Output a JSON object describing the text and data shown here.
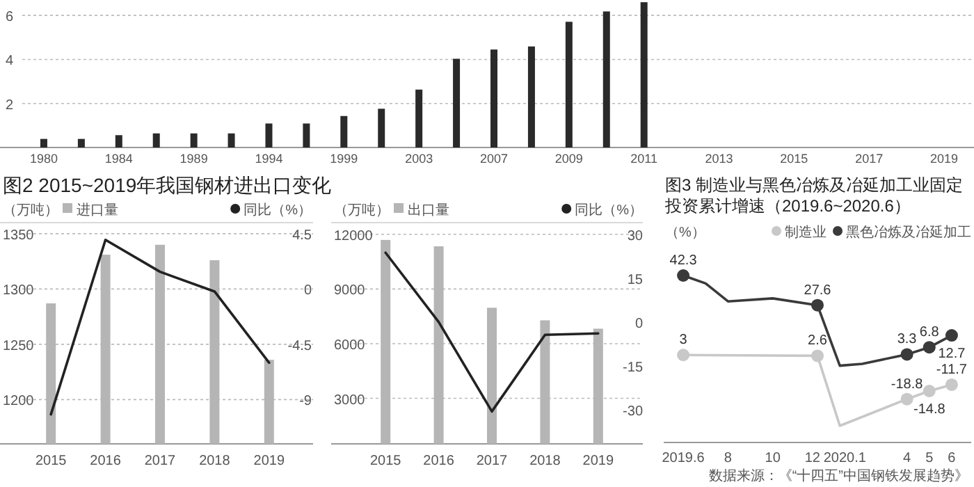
{
  "chart_data": [
    {
      "type": "bar",
      "categories": [
        "1980",
        null,
        "1984",
        null,
        "1989",
        null,
        "1994",
        null,
        "1999",
        null,
        "2003",
        null,
        "2007",
        null,
        "2009",
        null,
        "2011",
        null,
        "2013",
        null,
        "2015",
        null,
        "2017",
        null,
        "2019"
      ],
      "values": [
        0.39,
        0.39,
        0.56,
        0.64,
        0.64,
        0.64,
        1.09,
        1.09,
        1.43,
        1.76,
        2.63,
        4.03,
        4.45,
        4.59,
        5.71,
        6.18,
        6.6,
        null,
        null,
        null,
        null,
        null,
        null,
        null,
        null
      ],
      "color": "#2a2a2a",
      "ylim": [
        0,
        6.7
      ],
      "yticks": [
        2,
        4,
        6
      ],
      "grid": "y"
    },
    {
      "type": "bar",
      "title": "图2 2015~2019年我国钢材进出口变化",
      "ylabel": "（万吨）",
      "y2label": "（%）",
      "categories": [
        "2015",
        "2016",
        "2017",
        "2018",
        "2019"
      ],
      "series": [
        {
          "name": "进口量",
          "color": "#b5b5b5",
          "values": [
            1287,
            1331,
            1340,
            1326,
            1236
          ]
        },
        {
          "name": "同比",
          "type": "line",
          "axis": "y2",
          "color": "#222222",
          "values": [
            -10.2,
            4.0,
            1.4,
            -0.2,
            -6.0
          ]
        }
      ],
      "ylim": [
        1160,
        1360
      ],
      "yticks": [
        1200,
        1250,
        1300,
        1350
      ],
      "y2lim": [
        -12.6,
        5.4
      ],
      "y2ticks": [
        -9,
        -4.5,
        0,
        4.5
      ],
      "grid": "y",
      "legend": "top"
    },
    {
      "type": "bar",
      "ylabel": "（万吨）",
      "y2label": "（%）",
      "categories": [
        "2015",
        "2016",
        "2017",
        "2018",
        "2019"
      ],
      "series": [
        {
          "name": "出口量",
          "color": "#b5b5b5",
          "values": [
            11690,
            11340,
            7970,
            7280,
            6820
          ]
        },
        {
          "name": "同比",
          "type": "line",
          "axis": "y2",
          "color": "#222222",
          "values": [
            23.7,
            0,
            -30.6,
            -4.4,
            -3.9
          ]
        }
      ],
      "ylim": [
        500,
        12640
      ],
      "yticks": [
        3000,
        6000,
        9000,
        12000
      ],
      "y2lim": [
        -41.7,
        34
      ],
      "y2ticks": [
        -30,
        -15,
        0,
        15,
        30
      ],
      "grid": "y",
      "legend": "top"
    },
    {
      "type": "line",
      "title": "图3 制造业与黑色冶炼及冶延加工业固定投资累计增速（2019.6~2020.6）",
      "ylabel": "（%）",
      "categories": [
        "2019.6",
        null,
        "8",
        null,
        "10",
        null,
        "12",
        "2020.1",
        null,
        null,
        "4",
        "5",
        "6"
      ],
      "series": [
        {
          "name": "制造业",
          "color": "#c8c8c8",
          "values": [
            3,
            null,
            null,
            null,
            null,
            null,
            2.6,
            -32,
            null,
            null,
            -18.8,
            -14.8,
            -11.7
          ],
          "value_labels": [
            "3",
            null,
            null,
            null,
            null,
            null,
            "2.6",
            null,
            null,
            null,
            "-18.8",
            "-14.8",
            "-11.7"
          ]
        },
        {
          "name": "黑色冶炼及冶延加工",
          "color": "#3a3a3a",
          "values": [
            42.3,
            38.4,
            29.5,
            null,
            31,
            null,
            27.6,
            -2.3,
            -1.4,
            null,
            3.3,
            6.8,
            12.7
          ],
          "value_labels": [
            "42.3",
            null,
            null,
            null,
            null,
            null,
            "27.6",
            null,
            null,
            null,
            "3.3",
            "6.8",
            "12.7"
          ]
        }
      ],
      "marker": "circle",
      "legend": "top right",
      "annotations": [
        "数据来源：《“十四五”中国钢铁发展趋势》"
      ]
    }
  ]
}
